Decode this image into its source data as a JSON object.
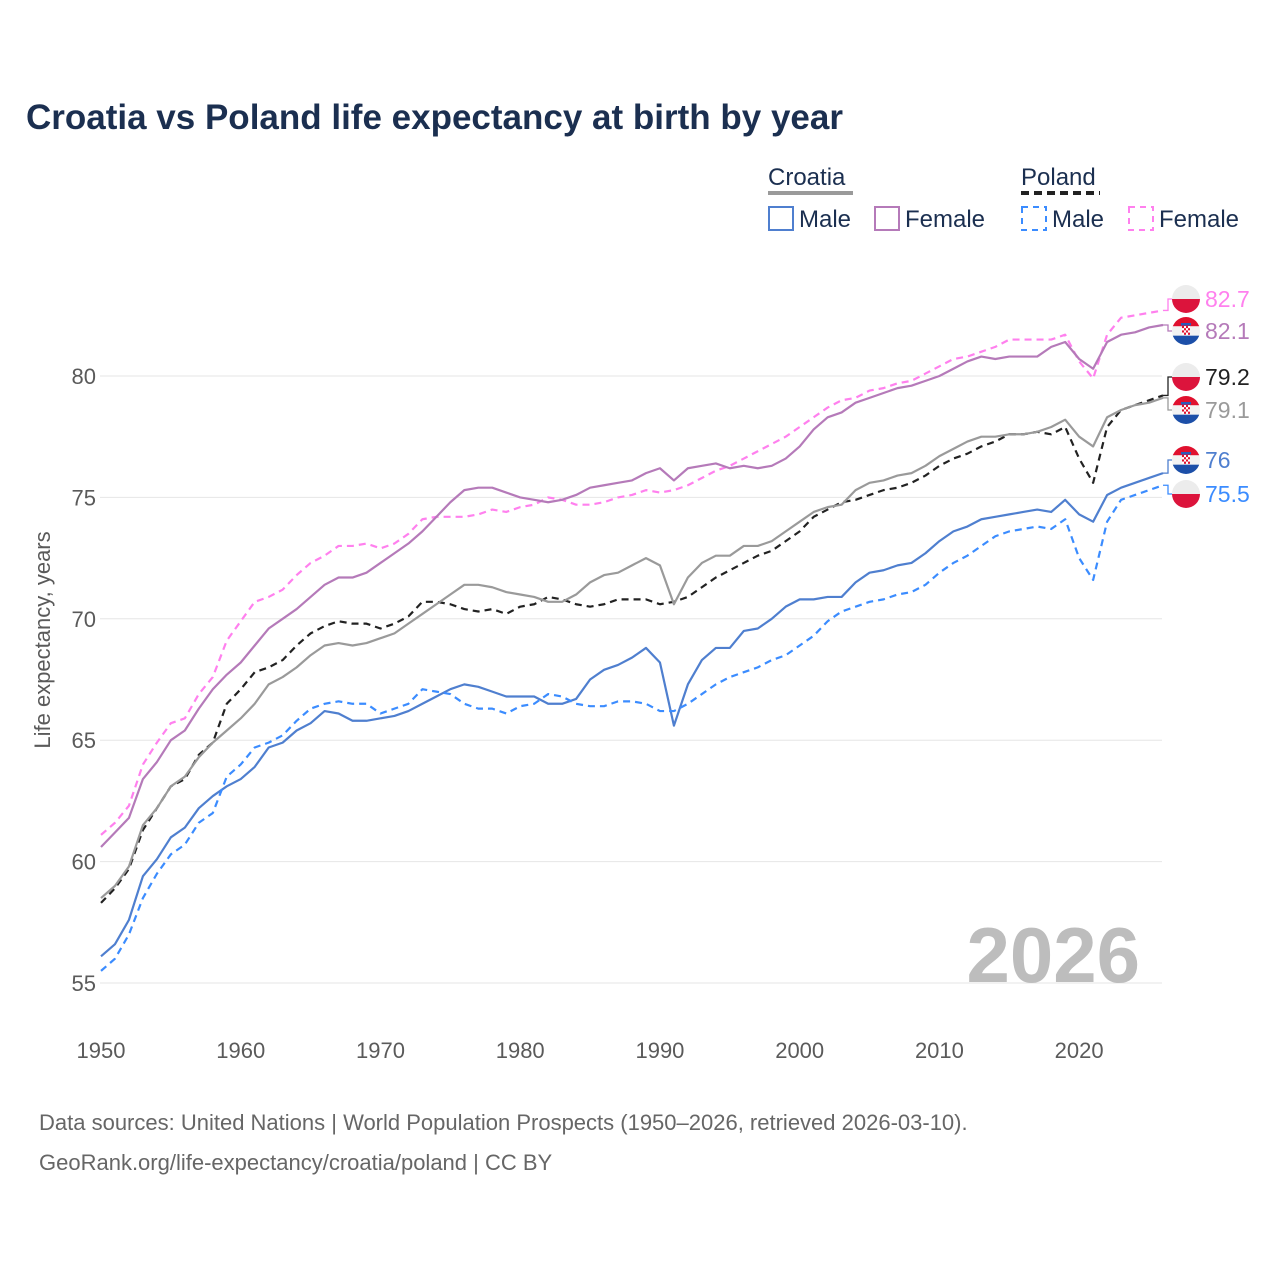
{
  "chart_data": {
    "type": "line",
    "title": "Croatia vs Poland life expectancy at birth by year",
    "xlabel": "",
    "ylabel": "Life expectancy, years",
    "xlim": [
      1950,
      2026
    ],
    "ylim": [
      54,
      84
    ],
    "x_ticks": [
      1950,
      1960,
      1970,
      1980,
      1990,
      2000,
      2010,
      2020
    ],
    "y_ticks": [
      55,
      60,
      65,
      70,
      75,
      80
    ],
    "grid": true,
    "year_watermark": "2026",
    "legend": {
      "placement": "top-right",
      "groups": [
        {
          "label": "Croatia",
          "items": [
            "Male",
            "Female"
          ]
        },
        {
          "label": "Poland",
          "items": [
            "Male",
            "Female"
          ]
        }
      ]
    },
    "x_start": 1950,
    "series": [
      {
        "name": "Poland Female",
        "country": "Poland",
        "sex": "Female",
        "color": "#ff80ee",
        "dashed": true,
        "end_label": "82.7",
        "values": [
          61.1,
          61.6,
          62.3,
          64.0,
          64.9,
          65.7,
          65.9,
          66.9,
          67.6,
          69.1,
          69.9,
          70.7,
          70.9,
          71.2,
          71.8,
          72.3,
          72.6,
          73.0,
          73.0,
          73.1,
          72.9,
          73.1,
          73.5,
          74.1,
          74.2,
          74.2,
          74.2,
          74.3,
          74.5,
          74.4,
          74.6,
          74.7,
          75.0,
          74.9,
          74.7,
          74.7,
          74.8,
          75.0,
          75.1,
          75.3,
          75.2,
          75.3,
          75.5,
          75.8,
          76.1,
          76.3,
          76.6,
          76.9,
          77.2,
          77.5,
          77.9,
          78.3,
          78.7,
          79.0,
          79.1,
          79.4,
          79.5,
          79.7,
          79.8,
          80.1,
          80.4,
          80.7,
          80.8,
          81.0,
          81.2,
          81.5,
          81.5,
          81.5,
          81.5,
          81.7,
          80.6,
          79.9,
          81.7,
          82.4,
          82.5,
          82.6,
          82.7
        ]
      },
      {
        "name": "Croatia Female",
        "country": "Croatia",
        "sex": "Female",
        "color": "#b57ab9",
        "dashed": false,
        "end_label": "82.1",
        "values": [
          60.6,
          61.2,
          61.8,
          63.4,
          64.1,
          65.0,
          65.4,
          66.3,
          67.1,
          67.7,
          68.2,
          68.9,
          69.6,
          70.0,
          70.4,
          70.9,
          71.4,
          71.7,
          71.7,
          71.9,
          72.3,
          72.7,
          73.1,
          73.6,
          74.2,
          74.8,
          75.3,
          75.4,
          75.4,
          75.2,
          75.0,
          74.9,
          74.8,
          74.9,
          75.1,
          75.4,
          75.5,
          75.6,
          75.7,
          76.0,
          76.2,
          75.7,
          76.2,
          76.3,
          76.4,
          76.2,
          76.3,
          76.2,
          76.3,
          76.6,
          77.1,
          77.8,
          78.3,
          78.5,
          78.9,
          79.1,
          79.3,
          79.5,
          79.6,
          79.8,
          80.0,
          80.3,
          80.6,
          80.8,
          80.7,
          80.8,
          80.8,
          80.8,
          81.2,
          81.4,
          80.7,
          80.3,
          81.4,
          81.7,
          81.8,
          82.0,
          82.1
        ]
      },
      {
        "name": "Poland",
        "country": "Poland",
        "sex": "Total",
        "color": "#222222",
        "dashed": true,
        "end_label": "79.2",
        "values": [
          58.3,
          58.9,
          59.7,
          61.3,
          62.2,
          63.1,
          63.4,
          64.4,
          64.9,
          66.5,
          67.1,
          67.8,
          68.0,
          68.3,
          68.9,
          69.4,
          69.7,
          69.9,
          69.8,
          69.8,
          69.6,
          69.8,
          70.1,
          70.7,
          70.7,
          70.6,
          70.4,
          70.3,
          70.4,
          70.2,
          70.5,
          70.6,
          70.9,
          70.8,
          70.6,
          70.5,
          70.6,
          70.8,
          70.8,
          70.8,
          70.6,
          70.7,
          70.9,
          71.3,
          71.7,
          72.0,
          72.3,
          72.6,
          72.8,
          73.2,
          73.6,
          74.2,
          74.5,
          74.8,
          74.9,
          75.1,
          75.3,
          75.4,
          75.6,
          75.9,
          76.3,
          76.6,
          76.8,
          77.1,
          77.3,
          77.6,
          77.6,
          77.7,
          77.6,
          77.9,
          76.6,
          75.6,
          77.9,
          78.6,
          78.8,
          79.0,
          79.2
        ]
      },
      {
        "name": "Croatia",
        "country": "Croatia",
        "sex": "Total",
        "color": "#9a9a9a",
        "dashed": false,
        "end_label": "79.1",
        "values": [
          58.5,
          59.0,
          59.8,
          61.5,
          62.2,
          63.1,
          63.5,
          64.3,
          64.9,
          65.4,
          65.9,
          66.5,
          67.3,
          67.6,
          68.0,
          68.5,
          68.9,
          69.0,
          68.9,
          69.0,
          69.2,
          69.4,
          69.8,
          70.2,
          70.6,
          71.0,
          71.4,
          71.4,
          71.3,
          71.1,
          71.0,
          70.9,
          70.7,
          70.7,
          71.0,
          71.5,
          71.8,
          71.9,
          72.2,
          72.5,
          72.2,
          70.6,
          71.7,
          72.3,
          72.6,
          72.6,
          73.0,
          73.0,
          73.2,
          73.6,
          74.0,
          74.4,
          74.6,
          74.7,
          75.3,
          75.6,
          75.7,
          75.9,
          76.0,
          76.3,
          76.7,
          77.0,
          77.3,
          77.5,
          77.5,
          77.6,
          77.6,
          77.7,
          77.9,
          78.2,
          77.5,
          77.1,
          78.3,
          78.6,
          78.8,
          78.9,
          79.1
        ]
      },
      {
        "name": "Croatia Male",
        "country": "Croatia",
        "sex": "Male",
        "color": "#4f7fcf",
        "dashed": false,
        "end_label": "76",
        "values": [
          56.1,
          56.6,
          57.6,
          59.4,
          60.1,
          61.0,
          61.4,
          62.2,
          62.7,
          63.1,
          63.4,
          63.9,
          64.7,
          64.9,
          65.4,
          65.7,
          66.2,
          66.1,
          65.8,
          65.8,
          65.9,
          66.0,
          66.2,
          66.5,
          66.8,
          67.1,
          67.3,
          67.2,
          67.0,
          66.8,
          66.8,
          66.8,
          66.5,
          66.5,
          66.7,
          67.5,
          67.9,
          68.1,
          68.4,
          68.8,
          68.2,
          65.6,
          67.3,
          68.3,
          68.8,
          68.8,
          69.5,
          69.6,
          70.0,
          70.5,
          70.8,
          70.8,
          70.9,
          70.9,
          71.5,
          71.9,
          72.0,
          72.2,
          72.3,
          72.7,
          73.2,
          73.6,
          73.8,
          74.1,
          74.2,
          74.3,
          74.4,
          74.5,
          74.4,
          74.9,
          74.3,
          74.0,
          75.1,
          75.4,
          75.6,
          75.8,
          76.0
        ]
      },
      {
        "name": "Poland Male",
        "country": "Poland",
        "sex": "Male",
        "color": "#3b8cff",
        "dashed": true,
        "end_label": "75.5",
        "values": [
          55.5,
          56.0,
          57.0,
          58.5,
          59.5,
          60.3,
          60.7,
          61.6,
          62.0,
          63.5,
          64.0,
          64.7,
          64.9,
          65.2,
          65.8,
          66.3,
          66.5,
          66.6,
          66.5,
          66.5,
          66.1,
          66.3,
          66.5,
          67.1,
          67.0,
          66.9,
          66.5,
          66.3,
          66.3,
          66.1,
          66.4,
          66.5,
          66.9,
          66.8,
          66.5,
          66.4,
          66.4,
          66.6,
          66.6,
          66.5,
          66.2,
          66.2,
          66.5,
          66.9,
          67.3,
          67.6,
          67.8,
          68.0,
          68.3,
          68.5,
          68.9,
          69.3,
          69.9,
          70.3,
          70.5,
          70.7,
          70.8,
          71.0,
          71.1,
          71.4,
          71.9,
          72.3,
          72.6,
          73.0,
          73.4,
          73.6,
          73.7,
          73.8,
          73.7,
          74.1,
          72.5,
          71.6,
          74.0,
          74.9,
          75.1,
          75.3,
          75.5
        ]
      }
    ]
  },
  "footer": {
    "line1": "Data sources: United Nations | World Population Prospects (1950–2026, retrieved 2026-03-10).",
    "line2": "GeoRank.org/life-expectancy/croatia/poland | CC BY"
  }
}
